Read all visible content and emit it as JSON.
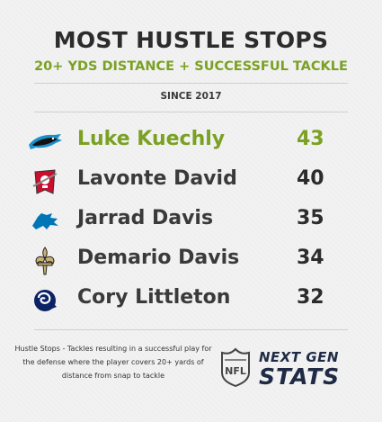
{
  "title": "MOST HUSTLE STOPS",
  "subtitle": "20+ YDS DISTANCE + SUCCESSFUL TACKLE",
  "since": "SINCE 2017",
  "highlight_color": "#7aa123",
  "players": [
    {
      "name": "Luke Kuechly",
      "value": "43",
      "team_icon": "panthers-logo-icon"
    },
    {
      "name": "Lavonte David",
      "value": "40",
      "team_icon": "buccaneers-logo-icon"
    },
    {
      "name": "Jarrad Davis",
      "value": "35",
      "team_icon": "lions-logo-icon"
    },
    {
      "name": "Demario Davis",
      "value": "34",
      "team_icon": "saints-logo-icon"
    },
    {
      "name": "Cory Littleton",
      "value": "32",
      "team_icon": "rams-logo-icon"
    }
  ],
  "footnote": {
    "label": "Hustle Stops",
    "text": " - Tackles resulting in a successful play for the defense where the player covers 20+ yards of distance from snap to tackle"
  },
  "brand": {
    "line1": "NEXT GEN",
    "line2": "STATS"
  }
}
